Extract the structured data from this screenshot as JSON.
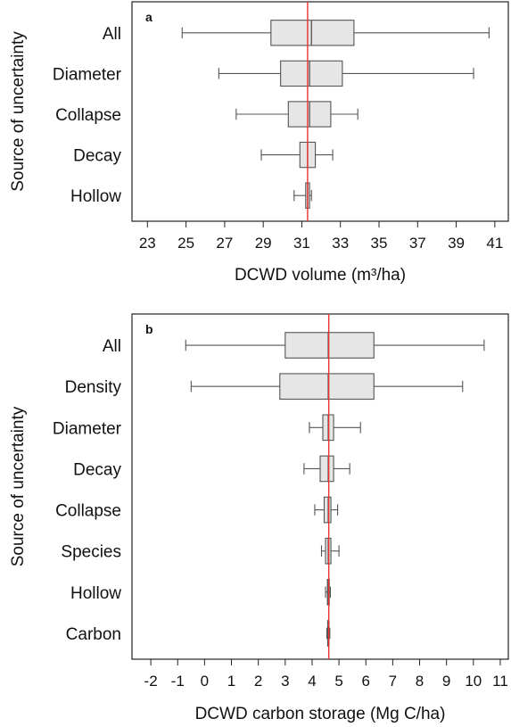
{
  "colors": {
    "box_fill": "#e6e6e6",
    "box_stroke": "#555555",
    "reference_line": "#ee3030",
    "frame": "#222222"
  },
  "chart_data": [
    {
      "type": "boxplot",
      "panel_label": "a",
      "xlabel": "DCWD volume (m³/ha)",
      "ylabel": "Source of uncertainty",
      "xlim": [
        22.2,
        41.7
      ],
      "xticks": [
        23,
        25,
        27,
        29,
        31,
        33,
        35,
        37,
        39,
        41
      ],
      "reference_line": 31.3,
      "categories": [
        "All",
        "Diameter",
        "Collapse",
        "Decay",
        "Hollow"
      ],
      "boxes": [
        {
          "label": "All",
          "whisker_low": 24.8,
          "q1": 29.4,
          "median": 31.5,
          "q3": 33.7,
          "whisker_high": 40.7
        },
        {
          "label": "Diameter",
          "whisker_low": 26.7,
          "q1": 29.9,
          "median": 31.4,
          "q3": 33.1,
          "whisker_high": 39.9
        },
        {
          "label": "Collapse",
          "whisker_low": 27.6,
          "q1": 30.3,
          "median": 31.4,
          "q3": 32.5,
          "whisker_high": 33.9
        },
        {
          "label": "Decay",
          "whisker_low": 28.9,
          "q1": 30.9,
          "median": 31.3,
          "q3": 31.7,
          "whisker_high": 32.6
        },
        {
          "label": "Hollow",
          "whisker_low": 30.6,
          "q1": 31.2,
          "median": 31.3,
          "q3": 31.4,
          "whisker_high": 31.5
        }
      ]
    },
    {
      "type": "boxplot",
      "panel_label": "b",
      "xlabel": "DCWD carbon storage (Mg C/ha)",
      "ylabel": "Source of uncertainty",
      "xlim": [
        -2.7,
        11.3
      ],
      "xticks": [
        -2,
        -1,
        0,
        1,
        2,
        3,
        4,
        5,
        6,
        7,
        8,
        9,
        10,
        11
      ],
      "reference_line": 4.62,
      "categories": [
        "All",
        "Density",
        "Diameter",
        "Decay",
        "Collapse",
        "Species",
        "Hollow",
        "Carbon"
      ],
      "boxes": [
        {
          "label": "All",
          "whisker_low": -0.7,
          "q1": 3.0,
          "median": 4.6,
          "q3": 6.3,
          "whisker_high": 10.4
        },
        {
          "label": "Density",
          "whisker_low": -0.5,
          "q1": 2.8,
          "median": 4.6,
          "q3": 6.3,
          "whisker_high": 9.6
        },
        {
          "label": "Diameter",
          "whisker_low": 3.9,
          "q1": 4.4,
          "median": 4.6,
          "q3": 4.8,
          "whisker_high": 5.8
        },
        {
          "label": "Decay",
          "whisker_low": 3.7,
          "q1": 4.3,
          "median": 4.6,
          "q3": 4.8,
          "whisker_high": 5.4
        },
        {
          "label": "Collapse",
          "whisker_low": 4.1,
          "q1": 4.45,
          "median": 4.6,
          "q3": 4.7,
          "whisker_high": 4.95
        },
        {
          "label": "Species",
          "whisker_low": 4.35,
          "q1": 4.5,
          "median": 4.6,
          "q3": 4.7,
          "whisker_high": 5.0
        },
        {
          "label": "Hollow",
          "whisker_low": 4.5,
          "q1": 4.57,
          "median": 4.6,
          "q3": 4.64,
          "whisker_high": 4.68
        },
        {
          "label": "Carbon",
          "whisker_low": 4.55,
          "q1": 4.58,
          "median": 4.6,
          "q3": 4.63,
          "whisker_high": 4.66
        }
      ]
    }
  ]
}
